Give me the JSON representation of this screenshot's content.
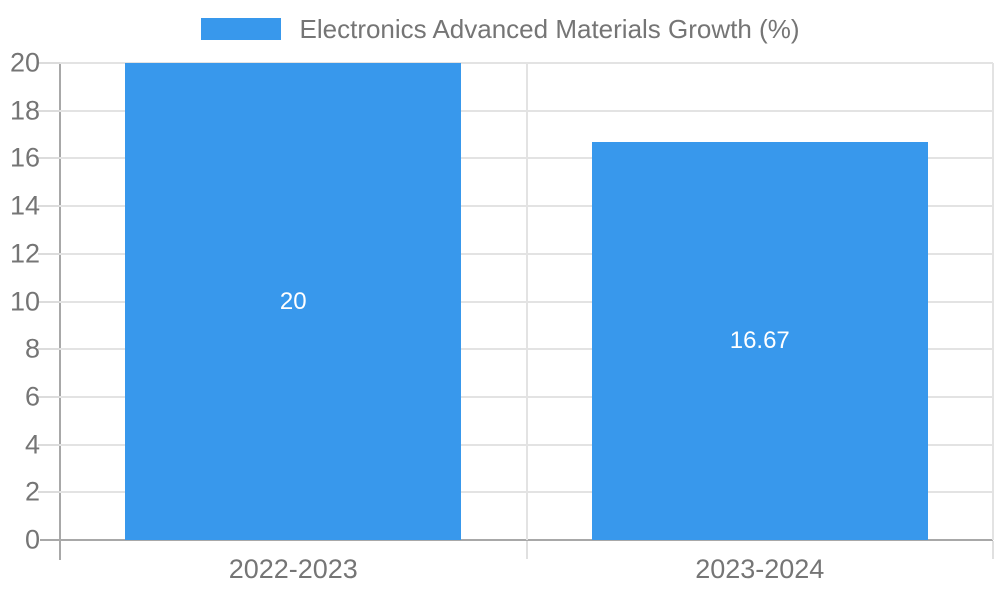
{
  "chart_data": {
    "type": "bar",
    "title": "Electronics Advanced Materials Growth (%)",
    "legend": {
      "position": "top",
      "label": "Electronics Advanced Materials Growth (%)"
    },
    "categories": [
      "2022-2023",
      "2023-2024"
    ],
    "values": [
      20,
      16.67
    ],
    "data_labels": [
      "20",
      "16.67"
    ],
    "xlabel": "",
    "ylabel": "",
    "ylim": [
      0,
      20
    ],
    "y_tick_step": 2,
    "y_ticks": [
      0,
      2,
      4,
      6,
      8,
      10,
      12,
      14,
      16,
      18,
      20
    ],
    "grid": true,
    "colors": {
      "bar": "#3898EC",
      "axis": "#a8a8a8",
      "gridline": "#e3e3e3",
      "tick": "#dcdcdc",
      "bottom_tick": "#e0e0e0",
      "label_text": "#757575",
      "data_label": "#ffffff"
    }
  }
}
